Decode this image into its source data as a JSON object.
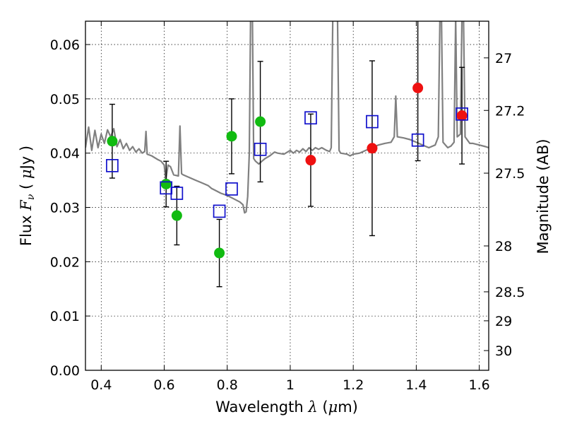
{
  "chart_data": {
    "type": "scatter",
    "xlabel": {
      "prefix": "Wavelength",
      "symbol": "λ",
      "unit_open": " (",
      "unit_mu": "μ",
      "unit_rest": "m)"
    },
    "ylabel": {
      "prefix": "Flux",
      "symbol": "F",
      "subscript": "ν",
      "unit_open": "( ",
      "unit_mu": "μ",
      "unit_rest": "Jy )"
    },
    "y2label": "Magnitude (AB)",
    "xlim": [
      0.35,
      1.63
    ],
    "ylim": [
      0.0,
      0.0643
    ],
    "xticks": [
      0.4,
      0.6,
      0.8,
      1.0,
      1.2,
      1.4,
      1.6
    ],
    "xtick_labels": [
      "0.4",
      "0.6",
      "0.8",
      "1",
      "1.2",
      "1.4",
      "1.6"
    ],
    "yticks": [
      0.0,
      0.01,
      0.02,
      0.03,
      0.04,
      0.05,
      0.06
    ],
    "ytick_labels": [
      "0.00",
      "0.01",
      "0.02",
      "0.03",
      "0.04",
      "0.05",
      "0.06"
    ],
    "y2ticks": [
      {
        "label": "27",
        "value": 27.0
      },
      {
        "label": "27.2",
        "value": 27.2
      },
      {
        "label": "27.5",
        "value": 27.5
      },
      {
        "label": "28",
        "value": 28.0
      },
      {
        "label": "28.5",
        "value": 28.5
      },
      {
        "label": "29",
        "value": 29.0
      },
      {
        "label": "30",
        "value": 30.0
      }
    ],
    "grid": true,
    "series": [
      {
        "marker": "circle",
        "color": "#11bb11",
        "points": [
          {
            "x": 0.435,
            "y": 0.0422,
            "err": 0.0068
          },
          {
            "x": 0.606,
            "y": 0.0343,
            "err": 0.0042
          },
          {
            "x": 0.64,
            "y": 0.0285,
            "err": 0.0054
          },
          {
            "x": 0.775,
            "y": 0.0216,
            "err": 0.0062
          },
          {
            "x": 0.814,
            "y": 0.0431,
            "err": 0.0069
          },
          {
            "x": 0.905,
            "y": 0.0458,
            "err": 0.0111
          }
        ]
      },
      {
        "marker": "circle",
        "color": "#ee1111",
        "points": [
          {
            "x": 1.065,
            "y": 0.0387,
            "err": 0.0085
          },
          {
            "x": 1.26,
            "y": 0.0409,
            "err": 0.0161
          },
          {
            "x": 1.405,
            "y": 0.052,
            "err": 0.0134
          },
          {
            "x": 1.545,
            "y": 0.0469,
            "err": 0.0089
          }
        ]
      },
      {
        "marker": "open-square",
        "color": "#1111cc",
        "points": [
          {
            "x": 0.435,
            "y": 0.0377
          },
          {
            "x": 0.606,
            "y": 0.0336
          },
          {
            "x": 0.64,
            "y": 0.0326
          },
          {
            "x": 0.775,
            "y": 0.0293
          },
          {
            "x": 0.814,
            "y": 0.0334
          },
          {
            "x": 0.905,
            "y": 0.0407
          },
          {
            "x": 1.065,
            "y": 0.0465
          },
          {
            "x": 1.26,
            "y": 0.0458
          },
          {
            "x": 1.405,
            "y": 0.0424
          },
          {
            "x": 1.545,
            "y": 0.0472
          }
        ]
      },
      {
        "marker": "line",
        "color": "#808080",
        "points": [
          [
            0.35,
            0.041
          ],
          [
            0.36,
            0.0448
          ],
          [
            0.37,
            0.0405
          ],
          [
            0.38,
            0.0442
          ],
          [
            0.39,
            0.041
          ],
          [
            0.4,
            0.0435
          ],
          [
            0.41,
            0.0418
          ],
          [
            0.42,
            0.0443
          ],
          [
            0.43,
            0.043
          ],
          [
            0.44,
            0.0445
          ],
          [
            0.45,
            0.0412
          ],
          [
            0.46,
            0.0425
          ],
          [
            0.47,
            0.0408
          ],
          [
            0.48,
            0.0418
          ],
          [
            0.49,
            0.0405
          ],
          [
            0.5,
            0.0412
          ],
          [
            0.51,
            0.0402
          ],
          [
            0.52,
            0.0408
          ],
          [
            0.53,
            0.04
          ],
          [
            0.538,
            0.0403
          ],
          [
            0.542,
            0.044
          ],
          [
            0.546,
            0.0398
          ],
          [
            0.56,
            0.0395
          ],
          [
            0.58,
            0.0388
          ],
          [
            0.59,
            0.0385
          ],
          [
            0.6,
            0.0378
          ],
          [
            0.605,
            0.035
          ],
          [
            0.612,
            0.0378
          ],
          [
            0.62,
            0.0375
          ],
          [
            0.63,
            0.036
          ],
          [
            0.645,
            0.0358
          ],
          [
            0.65,
            0.045
          ],
          [
            0.655,
            0.0362
          ],
          [
            0.66,
            0.036
          ],
          [
            0.68,
            0.0355
          ],
          [
            0.7,
            0.035
          ],
          [
            0.72,
            0.0345
          ],
          [
            0.74,
            0.034
          ],
          [
            0.75,
            0.0335
          ],
          [
            0.76,
            0.0332
          ],
          [
            0.78,
            0.0326
          ],
          [
            0.8,
            0.0322
          ],
          [
            0.82,
            0.0316
          ],
          [
            0.84,
            0.031
          ],
          [
            0.85,
            0.0305
          ],
          [
            0.855,
            0.029
          ],
          [
            0.86,
            0.0292
          ],
          [
            0.865,
            0.032
          ],
          [
            0.87,
            0.04
          ],
          [
            0.874,
            0.065
          ],
          [
            0.88,
            0.065
          ],
          [
            0.884,
            0.039
          ],
          [
            0.89,
            0.0385
          ],
          [
            0.9,
            0.038
          ],
          [
            0.91,
            0.0385
          ],
          [
            0.92,
            0.039
          ],
          [
            0.935,
            0.0395
          ],
          [
            0.95,
            0.0402
          ],
          [
            0.96,
            0.04
          ],
          [
            0.98,
            0.0398
          ],
          [
            1.0,
            0.0405
          ],
          [
            1.01,
            0.04
          ],
          [
            1.02,
            0.0405
          ],
          [
            1.03,
            0.0402
          ],
          [
            1.04,
            0.0408
          ],
          [
            1.05,
            0.0403
          ],
          [
            1.06,
            0.041
          ],
          [
            1.07,
            0.0405
          ],
          [
            1.08,
            0.041
          ],
          [
            1.09,
            0.0407
          ],
          [
            1.1,
            0.041
          ],
          [
            1.115,
            0.0405
          ],
          [
            1.125,
            0.0403
          ],
          [
            1.13,
            0.041
          ],
          [
            1.135,
            0.065
          ],
          [
            1.15,
            0.065
          ],
          [
            1.155,
            0.0405
          ],
          [
            1.16,
            0.04
          ],
          [
            1.18,
            0.0398
          ],
          [
            1.19,
            0.0395
          ],
          [
            1.2,
            0.0398
          ],
          [
            1.22,
            0.04
          ],
          [
            1.24,
            0.0405
          ],
          [
            1.26,
            0.041
          ],
          [
            1.28,
            0.0415
          ],
          [
            1.3,
            0.0418
          ],
          [
            1.32,
            0.042
          ],
          [
            1.33,
            0.043
          ],
          [
            1.335,
            0.0505
          ],
          [
            1.34,
            0.043
          ],
          [
            1.36,
            0.0428
          ],
          [
            1.38,
            0.0425
          ],
          [
            1.4,
            0.042
          ],
          [
            1.42,
            0.0415
          ],
          [
            1.44,
            0.041
          ],
          [
            1.46,
            0.0415
          ],
          [
            1.47,
            0.043
          ],
          [
            1.475,
            0.065
          ],
          [
            1.48,
            0.065
          ],
          [
            1.485,
            0.042
          ],
          [
            1.5,
            0.041
          ],
          [
            1.51,
            0.0413
          ],
          [
            1.52,
            0.042
          ],
          [
            1.525,
            0.065
          ],
          [
            1.53,
            0.043
          ],
          [
            1.54,
            0.0435
          ],
          [
            1.545,
            0.065
          ],
          [
            1.55,
            0.065
          ],
          [
            1.555,
            0.043
          ],
          [
            1.57,
            0.0418
          ],
          [
            1.58,
            0.0418
          ],
          [
            1.6,
            0.0415
          ],
          [
            1.62,
            0.0412
          ],
          [
            1.63,
            0.041
          ]
        ]
      }
    ]
  }
}
